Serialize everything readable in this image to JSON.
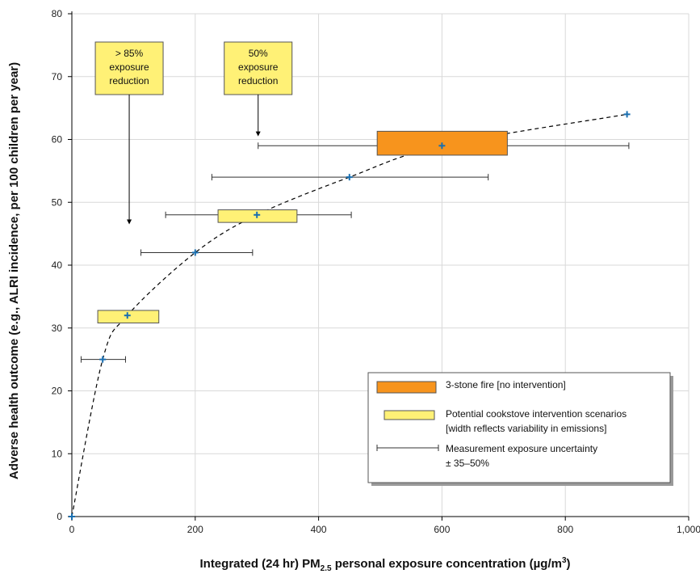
{
  "chart_data": {
    "type": "scatter",
    "xlabel_main": "Integrated (24 hr) PM",
    "xlabel_sub": "2.5",
    "xlabel_rest": " personal exposure concentration (µg/m",
    "xlabel_sup": "3",
    "xlabel_end": ")",
    "ylabel": "Adverse health outcome (e.g., ALRI incidence, per 100 children per year)",
    "xlim": [
      0,
      1000
    ],
    "ylim": [
      0,
      80
    ],
    "x_ticks": [
      0,
      200,
      400,
      600,
      800,
      1000
    ],
    "x_tick_labels": [
      "0",
      "200",
      "400",
      "600",
      "800",
      "1,000"
    ],
    "y_ticks": [
      0,
      10,
      20,
      30,
      40,
      50,
      60,
      70,
      80
    ],
    "y_tick_labels": [
      "0",
      "10",
      "20",
      "30",
      "40",
      "50",
      "60",
      "70",
      "80"
    ],
    "points": [
      {
        "x": 0,
        "y": 0
      },
      {
        "x": 50,
        "y": 25
      },
      {
        "x": 90,
        "y": 32
      },
      {
        "x": 200,
        "y": 42
      },
      {
        "x": 300,
        "y": 48
      },
      {
        "x": 450,
        "y": 54
      },
      {
        "x": 600,
        "y": 59
      },
      {
        "x": 900,
        "y": 64
      }
    ],
    "error_bars": [
      {
        "y": 25,
        "x_low": 15,
        "x_high": 87
      },
      {
        "y": 42,
        "x_low": 112,
        "x_high": 293
      },
      {
        "y": 48,
        "x_low": 152,
        "x_high": 453
      },
      {
        "y": 54,
        "x_low": 227,
        "x_high": 675
      },
      {
        "y": 59,
        "x_low": 302,
        "x_high": 903
      }
    ],
    "intervention_boxes": [
      {
        "x_low": 42,
        "x_high": 141,
        "y_low": 30.8,
        "y_high": 32.8
      },
      {
        "x_low": 237,
        "x_high": 365,
        "y_low": 46.8,
        "y_high": 48.8
      }
    ],
    "stove_box": {
      "x_low": 495,
      "x_high": 706,
      "y_low": 57.5,
      "y_high": 61.3
    },
    "curve_color": "#000000",
    "point_color": "#1a6fb0",
    "intervention_color": "#fff176",
    "stove_color": "#f7941d",
    "annotations": [
      {
        "lines": [
          "> 85%",
          "exposure",
          "reduction"
        ],
        "arrow_x": 93,
        "arrow_y_top": 66.5,
        "arrow_y_bottom": 46.5
      },
      {
        "lines": [
          "50%",
          "exposure",
          "reduction"
        ],
        "arrow_x": 302,
        "arrow_y_top": 66.5,
        "arrow_y_bottom": 60.5
      }
    ],
    "legend": {
      "placement": "bottom-right",
      "items": [
        {
          "kind": "stove",
          "lines": [
            "3-stone fire [no intervention]"
          ]
        },
        {
          "kind": "intervention",
          "lines": [
            "Potential cookstove intervention scenarios",
            "[width reflects variability in emissions]"
          ]
        },
        {
          "kind": "errorbar",
          "lines": [
            "Measurement exposure uncertainty",
            "± 35–50%"
          ]
        }
      ]
    }
  }
}
